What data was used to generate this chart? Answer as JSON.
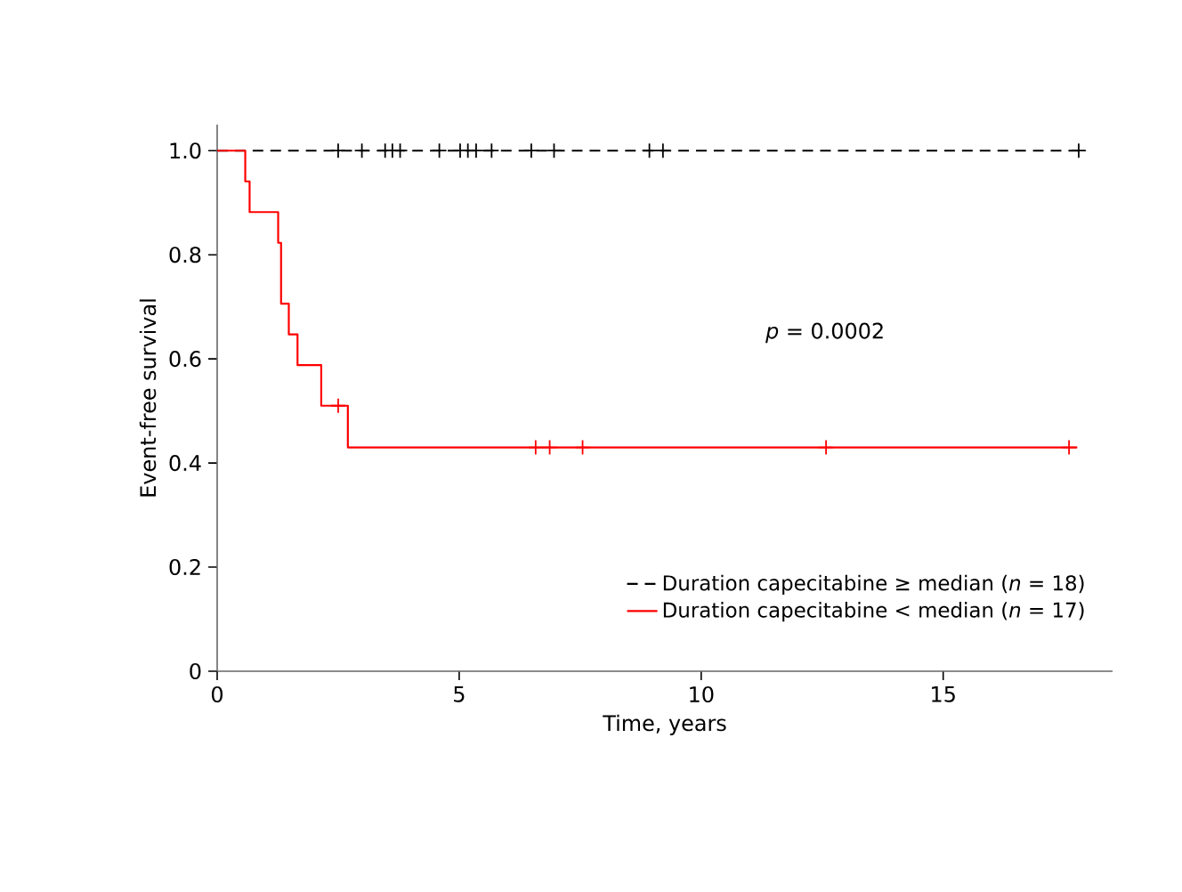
{
  "chart_data": {
    "type": "step",
    "xlabel": "Time, years",
    "ylabel": "Event-free survival",
    "xlim": [
      0,
      18.5
    ],
    "ylim": [
      0,
      1.05
    ],
    "xticks": [
      0,
      5,
      10,
      15
    ],
    "yticks": [
      {
        "value": 0,
        "label": "0"
      },
      {
        "value": 0.2,
        "label": "0.2"
      },
      {
        "value": 0.4,
        "label": "0.4"
      },
      {
        "value": 0.6,
        "label": "0.6"
      },
      {
        "value": 0.8,
        "label": "0.8"
      },
      {
        "value": 1.0,
        "label": "1.0"
      }
    ],
    "legend": "bottom right",
    "grid": false,
    "annotations": [
      "*p* = 0.0002"
    ],
    "series": [
      {
        "name": "Duration capecitabine ≥ median (*n* = 18)",
        "color": "#000000",
        "line_style": "dashed",
        "x": [
          0,
          17.8
        ],
        "values": [
          1.0,
          1.0
        ]
      },
      {
        "name": "Duration capecitabine < median (*n* = 17)",
        "color": "#ff0000",
        "line_style": "solid",
        "x": [
          0,
          0.58,
          0.67,
          1.26,
          1.32,
          1.48,
          1.66,
          2.15,
          2.7,
          17.77
        ],
        "values": [
          1.0,
          0.941,
          0.882,
          0.823,
          0.706,
          0.647,
          0.588,
          0.51,
          0.43,
          0.43
        ]
      },
      {
        "type": "scatter",
        "color": "#000000",
        "marker": "cross",
        "x": [
          2.5,
          2.99,
          3.47,
          3.62,
          3.78,
          4.59,
          5.02,
          5.18,
          5.35,
          5.67,
          6.49,
          6.96,
          8.93,
          9.21,
          17.8
        ],
        "values": [
          1.0,
          1.0,
          1.0,
          1.0,
          1.0,
          1.0,
          1.0,
          1.0,
          1.0,
          1.0,
          1.0,
          1.0,
          1.0,
          1.0,
          1.0
        ]
      },
      {
        "type": "scatter",
        "color": "#ff0000",
        "marker": "cross",
        "x": [
          2.5,
          6.58,
          6.87,
          7.55,
          12.58,
          17.6
        ],
        "values": [
          0.51,
          0.43,
          0.43,
          0.43,
          0.43,
          0.43
        ]
      }
    ]
  }
}
